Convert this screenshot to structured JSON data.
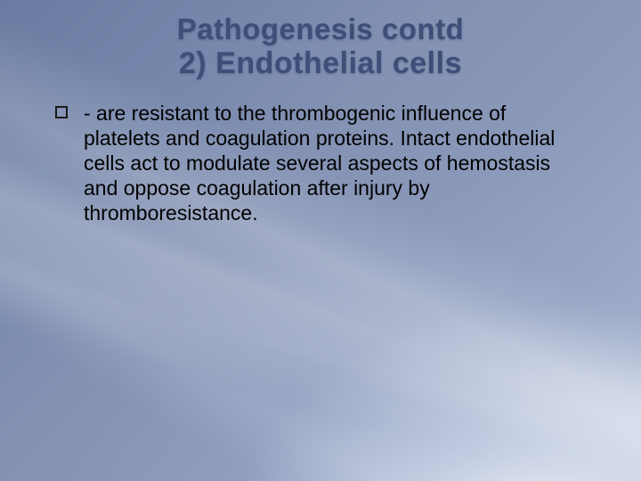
{
  "title": {
    "line1": "Pathogenesis contd",
    "line2": "2) Endothelial cells",
    "color": "#3f4e78",
    "line1_fontsize": 33,
    "line2_fontsize": 34
  },
  "bullet": {
    "marker": "hollow-square",
    "text": " - are resistant to the thrombogenic influence of platelets and coagulation proteins. Intact endothelial cells act to modulate several aspects of hemostasis and oppose coagulation after injury by thromboresistance.",
    "color": "#000000",
    "fontsize": 23
  },
  "background": {
    "gradient_from": "#6a7aa0",
    "gradient_to": "#b8c3d8",
    "rays_color": "#ffffff"
  }
}
